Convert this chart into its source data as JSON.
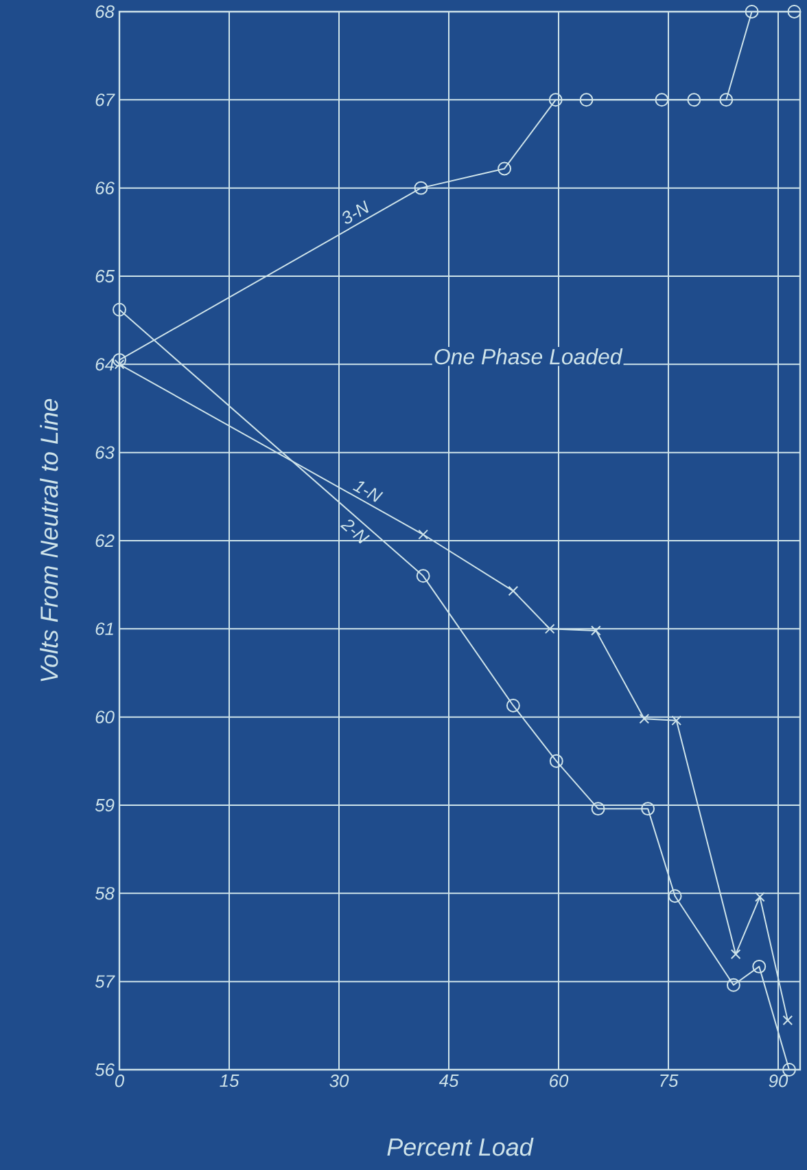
{
  "chart_data": {
    "type": "line",
    "xlabel": "Percent Load",
    "ylabel": "Volts From Neutral to Line",
    "annotations": [
      "One Phase Loaded"
    ],
    "xlim": [
      0,
      93
    ],
    "ylim": [
      56,
      68
    ],
    "xticks": [
      0,
      15,
      30,
      45,
      60,
      75,
      90
    ],
    "yticks": [
      56,
      57,
      58,
      59,
      60,
      61,
      62,
      63,
      64,
      65,
      66,
      67,
      68
    ],
    "grid": true,
    "series": [
      {
        "name": "3-N",
        "color": "#cfe4ea",
        "marker": "circle",
        "x": [
          0,
          41.2,
          52.6,
          59.6,
          63.8,
          74.1,
          78.5,
          82.9,
          86.4,
          92.2
        ],
        "values": [
          64.05,
          66.0,
          66.22,
          67.0,
          67.0,
          67.0,
          67.0,
          67.0,
          68.0,
          68.0
        ]
      },
      {
        "name": "1-N",
        "color": "#cfe4ea",
        "marker": "cross",
        "x": [
          0,
          41.5,
          53.8,
          58.8,
          65.1,
          71.7,
          76.1,
          84.2,
          87.5,
          91.3
        ],
        "values": [
          64.0,
          62.07,
          61.43,
          61.0,
          60.98,
          59.98,
          59.96,
          57.31,
          57.96,
          56.56
        ]
      },
      {
        "name": "2-N",
        "color": "#cfe4ea",
        "marker": "circle",
        "x": [
          0,
          41.5,
          53.8,
          59.7,
          65.4,
          72.2,
          75.9,
          83.9,
          87.4,
          91.5
        ],
        "values": [
          64.62,
          61.6,
          60.13,
          59.5,
          58.96,
          58.96,
          57.97,
          56.96,
          57.17,
          56.0
        ]
      }
    ]
  }
}
